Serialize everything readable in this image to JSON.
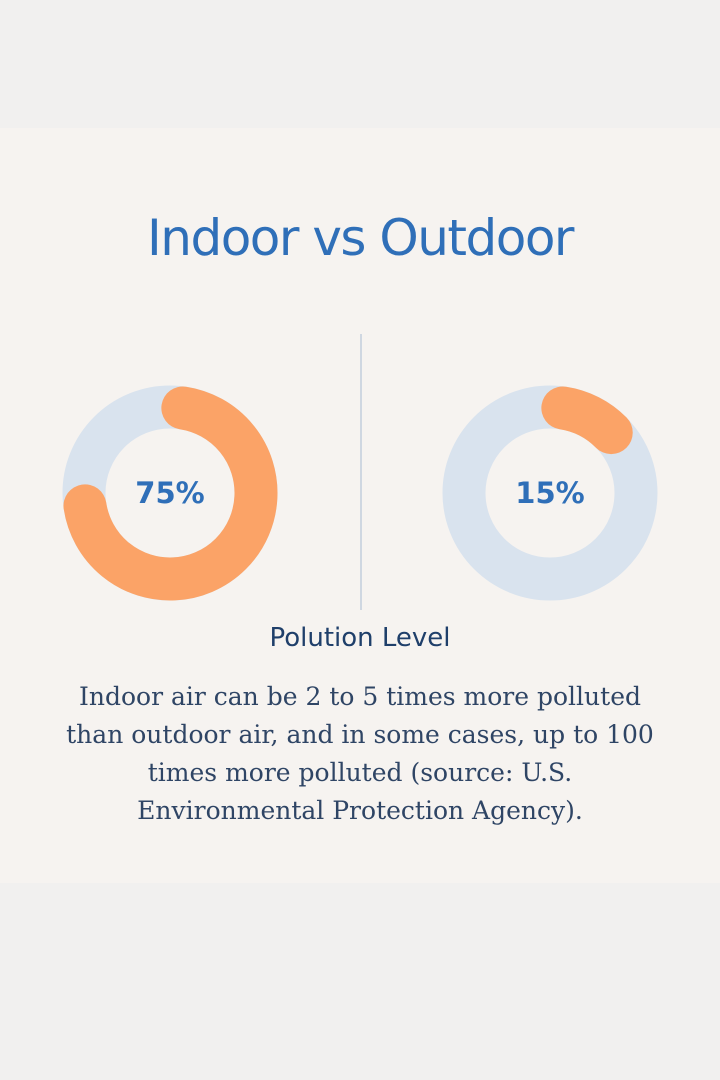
{
  "chart_data": [
    {
      "type": "pie",
      "style": "donut",
      "label": "75%",
      "values": [
        75,
        25
      ],
      "colors": [
        "#fba367",
        "#d9e3ee"
      ]
    },
    {
      "type": "pie",
      "style": "donut",
      "label": "15%",
      "values": [
        15,
        85
      ],
      "colors": [
        "#fba367",
        "#d9e3ee"
      ]
    }
  ],
  "header": {
    "title": "Indoor vs Outdoor"
  },
  "footer": {
    "subtitle": "Polution Level",
    "description": "Indoor air can be 2 to 5 times more polluted than outdoor air, and in some cases, up to 100 times more polluted (source: U.S. Environmental Protection Agency)."
  },
  "colors": {
    "accent": "#fba367",
    "track": "#d9e3ee",
    "title": "#2f6fb8"
  }
}
